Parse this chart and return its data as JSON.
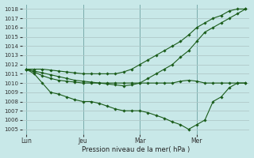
{
  "xlabel": "Pression niveau de la mer( hPa )",
  "bg_color": "#c8e8e8",
  "grid_color": "#b0c8c8",
  "line_color": "#1a5c1a",
  "ylim": [
    1004.5,
    1018.5
  ],
  "yticks": [
    1005,
    1006,
    1007,
    1008,
    1009,
    1010,
    1011,
    1012,
    1013,
    1014,
    1015,
    1016,
    1017,
    1018
  ],
  "xtick_labels": [
    "Lun",
    "Jeu",
    "Mar",
    "Mer"
  ],
  "xtick_pos": [
    0,
    7,
    14,
    21
  ],
  "vlines": [
    0,
    7,
    14,
    21
  ],
  "n_points": 28,
  "series": [
    [
      1011.5,
      1011.3,
      1011.1,
      1010.9,
      1010.7,
      1010.5,
      1010.3,
      1010.2,
      1010.1,
      1010.0,
      1009.9,
      1009.8,
      1009.7,
      1009.8,
      1010.0,
      1010.5,
      1011.0,
      1011.5,
      1012.0,
      1012.8,
      1013.5,
      1014.5,
      1015.5,
      1016.0,
      1016.5,
      1017.0,
      1017.5,
      1018.0
    ],
    [
      1011.5,
      1011.0,
      1010.0,
      1009.0,
      1008.8,
      1008.5,
      1008.2,
      1008.0,
      1008.0,
      1007.8,
      1007.5,
      1007.2,
      1007.0,
      1007.0,
      1007.0,
      1006.8,
      1006.5,
      1006.2,
      1005.8,
      1005.5,
      1005.0,
      1005.5,
      1006.0,
      1008.0,
      1008.5,
      1009.5,
      1010.0,
      1010.0
    ],
    [
      1011.5,
      1011.2,
      1010.8,
      1010.5,
      1010.3,
      1010.2,
      1010.1,
      1010.0,
      1010.0,
      1010.0,
      1010.0,
      1010.0,
      1010.0,
      1010.0,
      1010.0,
      1010.0,
      1010.0,
      1010.0,
      1010.0,
      1010.2,
      1010.3,
      1010.2,
      1010.0,
      1010.0,
      1010.0,
      1010.0,
      1010.0,
      1010.0
    ],
    [
      1011.5,
      1011.5,
      1011.5,
      1011.4,
      1011.3,
      1011.2,
      1011.1,
      1011.0,
      1011.0,
      1011.0,
      1011.0,
      1011.0,
      1011.2,
      1011.5,
      1012.0,
      1012.5,
      1013.0,
      1013.5,
      1014.0,
      1014.5,
      1015.2,
      1016.0,
      1016.5,
      1017.0,
      1017.3,
      1017.8,
      1018.0,
      1018.0
    ]
  ]
}
